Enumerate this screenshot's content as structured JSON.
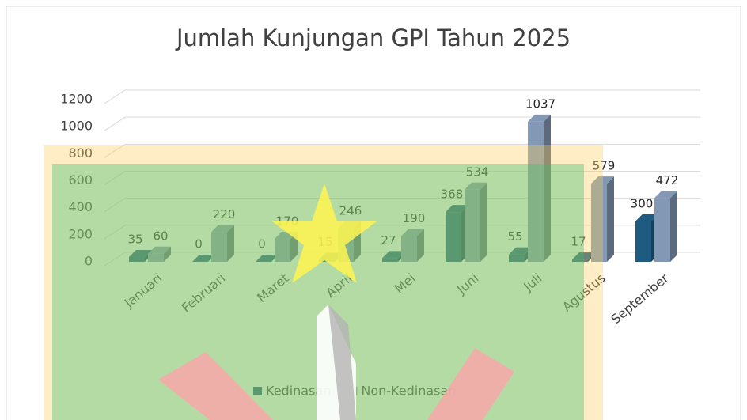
{
  "chart_data": {
    "type": "bar",
    "title": "Jumlah Kunjungan GPI Tahun 2025",
    "categories": [
      "Januari",
      "Februari",
      "Maret",
      "April",
      "Mei",
      "Juni",
      "Juli",
      "Agustus",
      "September"
    ],
    "series": [
      {
        "name": "Kedinasan",
        "color": "#1f5a80",
        "values": [
          35,
          0,
          0,
          15,
          27,
          368,
          55,
          17,
          300
        ]
      },
      {
        "name": "Non-Kedinasan",
        "color": "#8298b4",
        "values": [
          60,
          220,
          170,
          246,
          190,
          534,
          1037,
          579,
          472
        ]
      }
    ],
    "ylim": [
      0,
      1200
    ],
    "yticks": [
      0,
      200,
      400,
      600,
      800,
      1000,
      1200
    ],
    "grid": true,
    "legend": "bottom"
  }
}
